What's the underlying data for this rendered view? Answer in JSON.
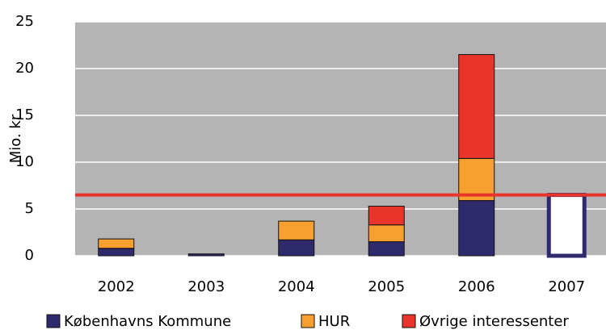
{
  "chart_data": {
    "type": "stacked_bar",
    "ylabel": "Mio. kr",
    "categories": [
      "2002",
      "2003",
      "2004",
      "2005",
      "2006",
      "2007"
    ],
    "series": [
      {
        "name": "Københavns Kommune",
        "color": "#2e2a6c",
        "values": [
          0.8,
          0.2,
          1.7,
          1.5,
          5.9,
          null
        ]
      },
      {
        "name": "HUR",
        "color": "#f7a030",
        "values": [
          1.0,
          null,
          2.0,
          1.8,
          4.5,
          null
        ]
      },
      {
        "name": "Øvrige interessenter",
        "color": "#e8342b",
        "values": [
          null,
          null,
          null,
          2.0,
          11.1,
          null
        ]
      },
      {
        "color": "#ffffff",
        "edgecolor": "#2e2a6c",
        "values": [
          null,
          null,
          null,
          null,
          null,
          6.5
        ]
      }
    ],
    "hline": {
      "value": 6.5,
      "color": "#e8342b"
    },
    "ylim": [
      0,
      25
    ],
    "yticks": [
      0,
      5,
      10,
      15,
      20,
      25
    ],
    "grid": true
  }
}
